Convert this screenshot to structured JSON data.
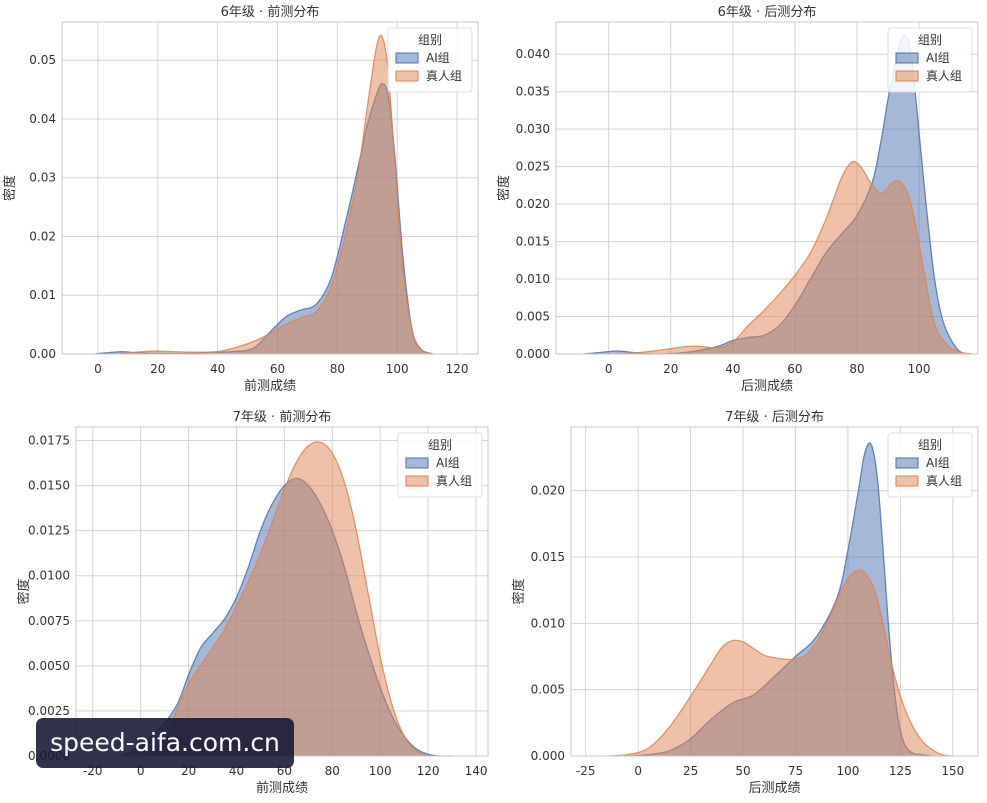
{
  "watermark": {
    "text": "speed-aifa.com.cn"
  },
  "colors": {
    "ai": "#4C72B0",
    "human": "#DD8452",
    "grid": "#d4d4d4",
    "frame": "#c8c8c8"
  },
  "chart_data": [
    {
      "type": "area",
      "title": "6年级 · 前测分布",
      "xlabel": "前测成绩",
      "ylabel": "密度",
      "xlim": [
        -12,
        127
      ],
      "ylim": [
        0,
        0.0565
      ],
      "xticks": [
        0,
        20,
        40,
        60,
        80,
        100,
        120
      ],
      "yticks": [
        0,
        0.01,
        0.02,
        0.03,
        0.04,
        0.05
      ],
      "xtick_labels": [
        "0",
        "20",
        "40",
        "60",
        "80",
        "100",
        "120"
      ],
      "ytick_labels": [
        "0.00",
        "0.01",
        "0.02",
        "0.03",
        "0.04",
        "0.05"
      ],
      "grid": true,
      "legend": {
        "title": "组别",
        "placement": "top-right"
      },
      "series": [
        {
          "name": "AI组",
          "color": "#4C72B0",
          "x": [
            -1,
            3,
            8,
            13,
            20,
            30,
            38,
            45,
            52,
            58,
            63,
            68,
            73,
            78,
            83,
            87,
            90,
            93,
            95,
            97,
            99,
            102,
            105,
            108,
            112
          ],
          "y": [
            0,
            0.0002,
            0.0004,
            0.0002,
            0.0001,
            0.0001,
            0.0003,
            0.0004,
            0.001,
            0.004,
            0.0064,
            0.0075,
            0.0085,
            0.013,
            0.023,
            0.032,
            0.039,
            0.044,
            0.046,
            0.044,
            0.035,
            0.016,
            0.004,
            0.0008,
            0
          ]
        },
        {
          "name": "真人组",
          "color": "#DD8452",
          "x": [
            3,
            10,
            18,
            25,
            32,
            40,
            48,
            55,
            62,
            68,
            73,
            78,
            83,
            87,
            90,
            93,
            95,
            97,
            99,
            102,
            105,
            108,
            111
          ],
          "y": [
            0,
            0.0002,
            0.0005,
            0.0004,
            0.0003,
            0.0004,
            0.0014,
            0.0028,
            0.0048,
            0.0062,
            0.0072,
            0.0115,
            0.021,
            0.031,
            0.042,
            0.052,
            0.054,
            0.048,
            0.034,
            0.014,
            0.004,
            0.0008,
            0
          ]
        }
      ]
    },
    {
      "type": "area",
      "title": "6年级 · 后测分布",
      "xlabel": "后测成绩",
      "ylabel": "密度",
      "xlim": [
        -17,
        119
      ],
      "ylim": [
        0,
        0.0443
      ],
      "xticks": [
        0,
        20,
        40,
        60,
        80,
        100
      ],
      "yticks": [
        0,
        0.005,
        0.01,
        0.015,
        0.02,
        0.025,
        0.03,
        0.035,
        0.04
      ],
      "xtick_labels": [
        "0",
        "20",
        "40",
        "60",
        "80",
        "100"
      ],
      "ytick_labels": [
        "0.000",
        "0.005",
        "0.010",
        "0.015",
        "0.020",
        "0.025",
        "0.030",
        "0.035",
        "0.040"
      ],
      "grid": true,
      "legend": {
        "title": "组别",
        "placement": "top-right"
      },
      "series": [
        {
          "name": "AI组",
          "color": "#4C72B0",
          "x": [
            -8,
            -3,
            3,
            8,
            15,
            22,
            28,
            35,
            40,
            45,
            50,
            55,
            60,
            65,
            70,
            75,
            80,
            85,
            88,
            90,
            93,
            95,
            97,
            99,
            102,
            105,
            108,
            112,
            115
          ],
          "y": [
            0,
            0.0002,
            0.0004,
            0.0002,
            0,
            0.0001,
            0.0004,
            0.001,
            0.0018,
            0.0022,
            0.0025,
            0.0038,
            0.0065,
            0.01,
            0.0135,
            0.016,
            0.0185,
            0.023,
            0.029,
            0.034,
            0.04,
            0.0425,
            0.041,
            0.034,
            0.021,
            0.01,
            0.004,
            0.0008,
            0
          ]
        },
        {
          "name": "真人组",
          "color": "#DD8452",
          "x": [
            2,
            10,
            18,
            25,
            30,
            35,
            40,
            45,
            50,
            55,
            60,
            65,
            70,
            75,
            78,
            80,
            82,
            85,
            88,
            92,
            95,
            98,
            102,
            105,
            109,
            113,
            117
          ],
          "y": [
            0,
            0.0002,
            0.0006,
            0.001,
            0.001,
            0.0008,
            0.0016,
            0.0038,
            0.0058,
            0.008,
            0.0105,
            0.0135,
            0.018,
            0.0235,
            0.0255,
            0.0255,
            0.0245,
            0.0225,
            0.0215,
            0.023,
            0.0225,
            0.019,
            0.01,
            0.004,
            0.0012,
            0.0003,
            0
          ]
        }
      ]
    },
    {
      "type": "area",
      "title": "7年级 · 前测分布",
      "xlabel": "前测成绩",
      "ylabel": "密度",
      "xlim": [
        -27,
        145
      ],
      "ylim": [
        0,
        0.01825
      ],
      "xticks": [
        -20,
        0,
        20,
        40,
        60,
        80,
        100,
        120,
        140
      ],
      "yticks": [
        0,
        0.0025,
        0.005,
        0.0075,
        0.01,
        0.0125,
        0.015,
        0.0175
      ],
      "xtick_labels": [
        "-20",
        "0",
        "20",
        "40",
        "60",
        "80",
        "100",
        "120",
        "140"
      ],
      "ytick_labels": [
        "0.0000",
        "0.0025",
        "0.0050",
        "0.0075",
        "0.0100",
        "0.0125",
        "0.0150",
        "0.0175"
      ],
      "grid": true,
      "legend": {
        "title": "组别",
        "placement": "top-right"
      },
      "series": [
        {
          "name": "AI组",
          "color": "#4C72B0",
          "x": [
            -8,
            -3,
            2,
            8,
            15,
            20,
            25,
            30,
            35,
            40,
            45,
            50,
            55,
            60,
            65,
            70,
            75,
            80,
            85,
            90,
            95,
            100,
            105,
            110,
            115,
            120,
            125,
            130
          ],
          "y": [
            0,
            0.0003,
            0.0008,
            0.0015,
            0.0028,
            0.0045,
            0.006,
            0.0068,
            0.0076,
            0.0088,
            0.0105,
            0.0125,
            0.014,
            0.015,
            0.0154,
            0.015,
            0.014,
            0.0125,
            0.0105,
            0.008,
            0.0058,
            0.0038,
            0.0022,
            0.0011,
            0.0004,
            0.0001,
            0,
            0
          ]
        },
        {
          "name": "真人组",
          "color": "#DD8452",
          "x": [
            0,
            5,
            10,
            15,
            20,
            25,
            30,
            35,
            40,
            45,
            50,
            55,
            60,
            65,
            70,
            75,
            80,
            85,
            90,
            95,
            100,
            105,
            110,
            115,
            120
          ],
          "y": [
            0,
            0.0003,
            0.001,
            0.0025,
            0.004,
            0.005,
            0.006,
            0.007,
            0.0083,
            0.0097,
            0.0112,
            0.013,
            0.0148,
            0.0163,
            0.0172,
            0.0174,
            0.0168,
            0.0152,
            0.0125,
            0.009,
            0.0055,
            0.0028,
            0.0011,
            0.0003,
            0
          ]
        }
      ]
    },
    {
      "type": "area",
      "title": "7年级 · 后测分布",
      "xlabel": "后测成绩",
      "ylabel": "密度",
      "xlim": [
        -32,
        162
      ],
      "ylim": [
        0,
        0.0248
      ],
      "xticks": [
        -25,
        0,
        25,
        50,
        75,
        100,
        125,
        150
      ],
      "yticks": [
        0,
        0.005,
        0.01,
        0.015,
        0.02
      ],
      "xtick_labels": [
        "-25",
        "0",
        "25",
        "50",
        "75",
        "100",
        "125",
        "150"
      ],
      "ytick_labels": [
        "0.000",
        "0.005",
        "0.010",
        "0.015",
        "0.020"
      ],
      "grid": true,
      "legend": {
        "title": "组别",
        "placement": "top-right"
      },
      "series": [
        {
          "name": "AI组",
          "color": "#4C72B0",
          "x": [
            -5,
            5,
            15,
            25,
            35,
            45,
            55,
            65,
            75,
            85,
            95,
            100,
            105,
            108,
            111,
            114,
            117,
            120,
            123,
            126,
            130,
            135,
            140
          ],
          "y": [
            0,
            0.0001,
            0.0004,
            0.0013,
            0.0028,
            0.004,
            0.0046,
            0.006,
            0.0075,
            0.009,
            0.012,
            0.0155,
            0.02,
            0.0228,
            0.0235,
            0.021,
            0.015,
            0.0085,
            0.0038,
            0.0013,
            0.0003,
            0.0001,
            0
          ]
        },
        {
          "name": "真人组",
          "color": "#DD8452",
          "x": [
            -15,
            -5,
            5,
            15,
            25,
            35,
            40,
            45,
            50,
            55,
            60,
            65,
            70,
            75,
            80,
            85,
            90,
            95,
            100,
            105,
            108,
            112,
            116,
            120,
            125,
            130,
            135,
            140,
            145,
            150
          ],
          "y": [
            0,
            0.0001,
            0.0006,
            0.0022,
            0.0045,
            0.007,
            0.0082,
            0.0087,
            0.0086,
            0.0081,
            0.0076,
            0.0074,
            0.0073,
            0.0073,
            0.0076,
            0.0086,
            0.01,
            0.0118,
            0.0134,
            0.014,
            0.0138,
            0.0128,
            0.0105,
            0.0075,
            0.0045,
            0.0025,
            0.0012,
            0.0005,
            0.0001,
            0
          ]
        }
      ]
    }
  ]
}
